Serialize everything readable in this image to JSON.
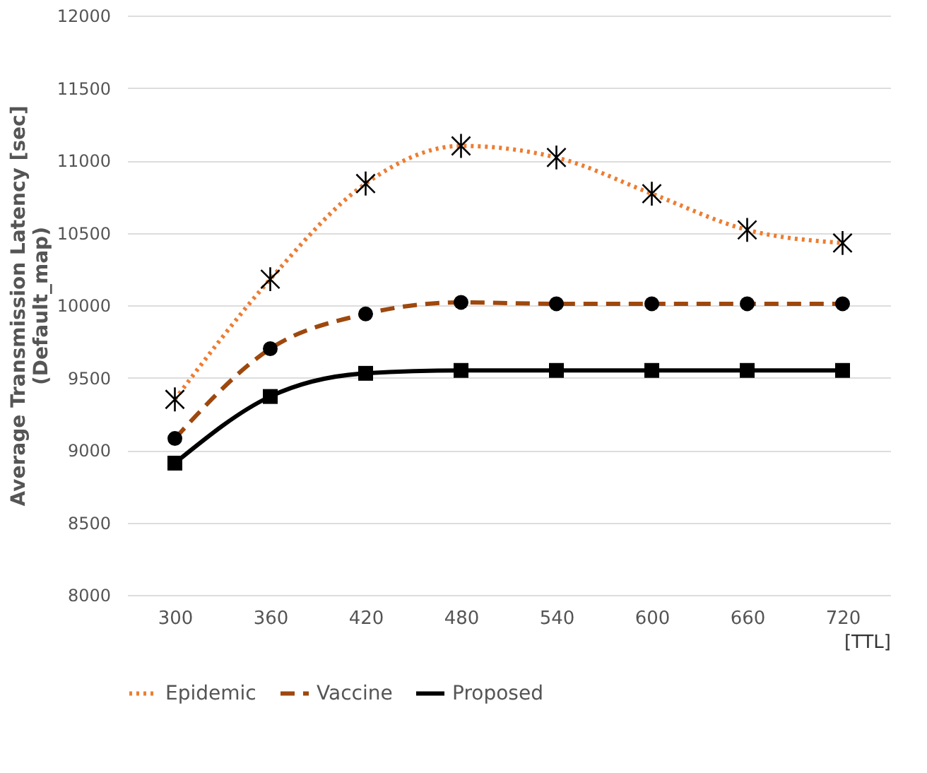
{
  "chart_data": {
    "type": "line",
    "ylabel": "Average Transmission Latency [sec]\n(Default_map)",
    "xlabel": "[TTL]",
    "categories": [
      "300",
      "360",
      "420",
      "480",
      "540",
      "600",
      "660",
      "720"
    ],
    "series": [
      {
        "name": "Epidemic",
        "color": "#ed7d31",
        "line_style": "dotted",
        "marker": "cross",
        "values": [
          9350,
          10180,
          10840,
          11100,
          11020,
          10770,
          10520,
          10430
        ]
      },
      {
        "name": "Vaccine",
        "color": "#9e480e",
        "line_style": "dashed",
        "marker": "circle",
        "values": [
          9080,
          9700,
          9940,
          10020,
          10010,
          10010,
          10010,
          10010
        ]
      },
      {
        "name": "Proposed",
        "color": "#000000",
        "line_style": "solid",
        "marker": "square",
        "values": [
          8910,
          9370,
          9530,
          9550,
          9550,
          9550,
          9550,
          9550
        ]
      }
    ],
    "ylim": [
      8000,
      12000
    ],
    "yticks": [
      8000,
      8500,
      9000,
      9500,
      10000,
      10500,
      11000,
      11500,
      12000
    ],
    "grid": "y",
    "legend": "bottom"
  }
}
